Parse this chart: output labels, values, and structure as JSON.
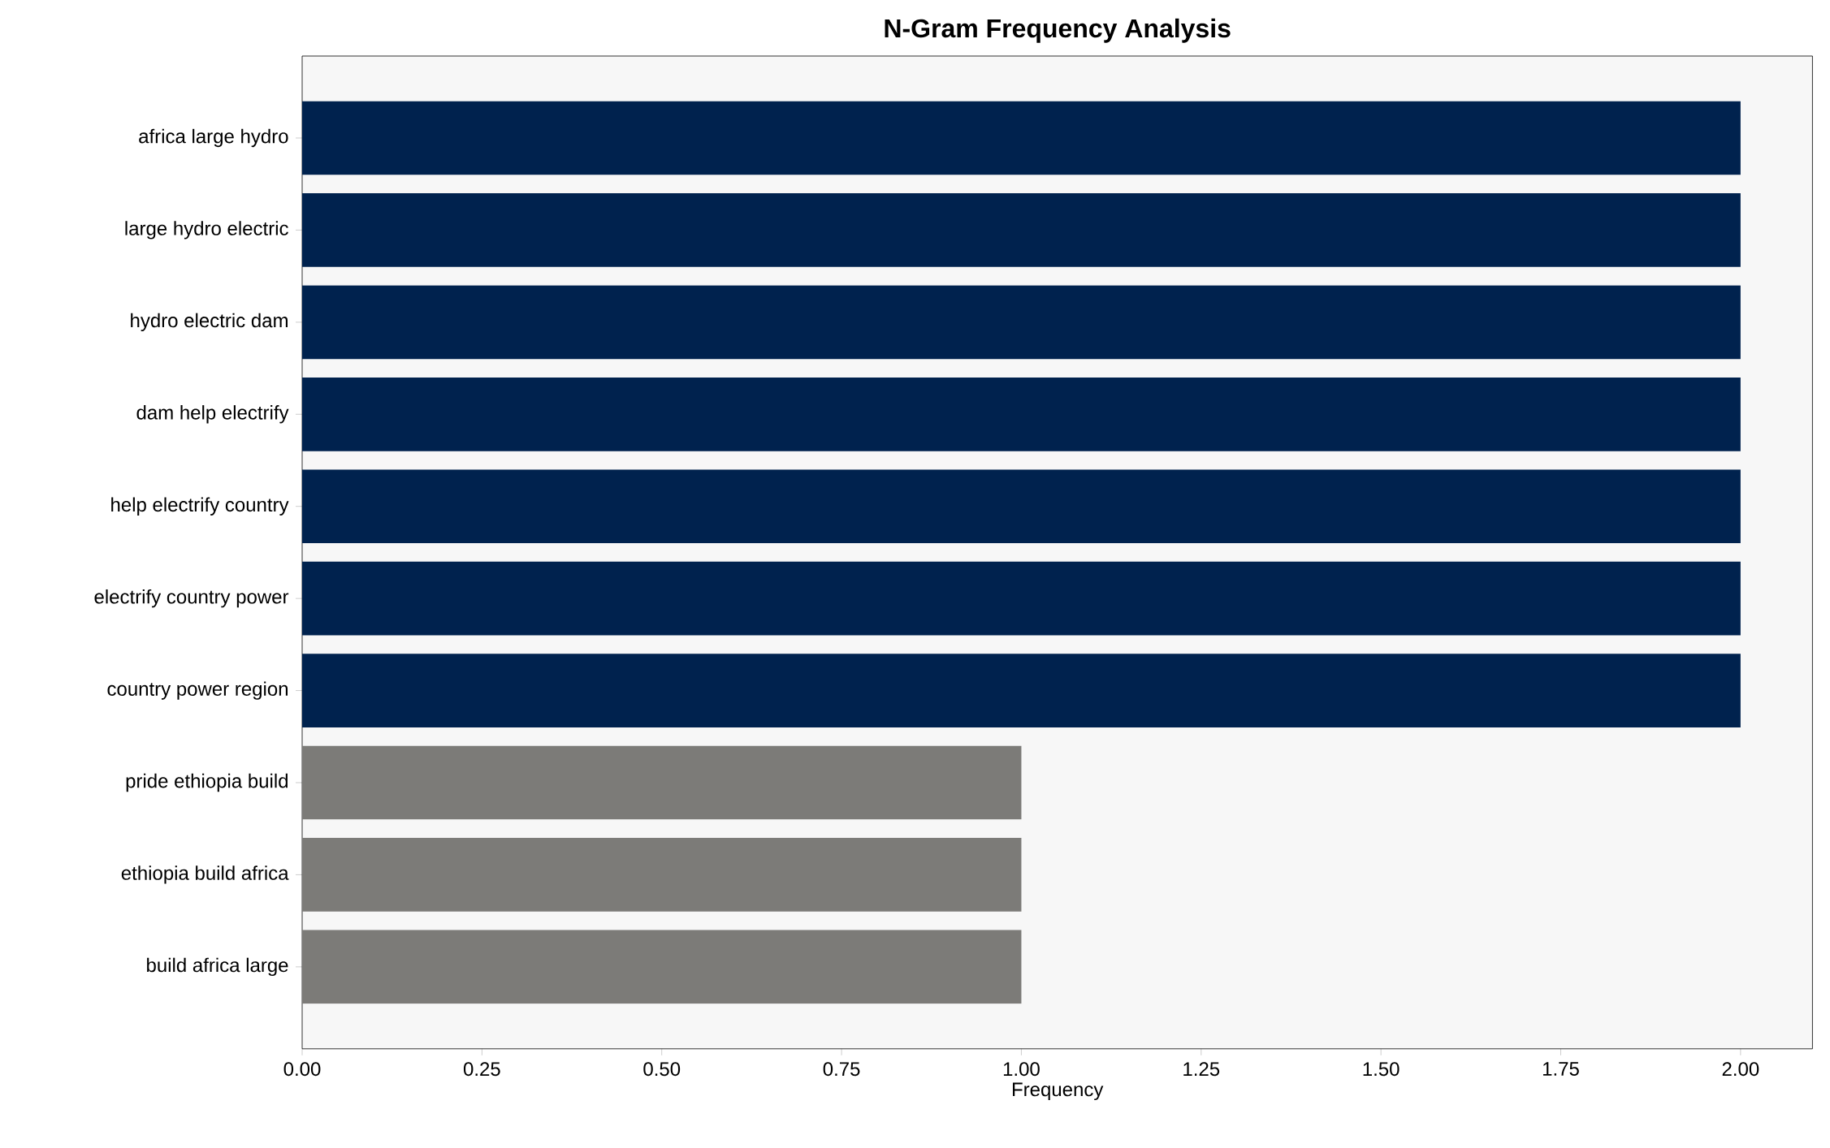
{
  "chart_data": {
    "type": "bar",
    "orientation": "horizontal",
    "title": "N-Gram Frequency Analysis",
    "xlabel": "Frequency",
    "categories": [
      "africa large hydro",
      "large hydro electric",
      "hydro electric dam",
      "dam help electrify",
      "help electrify country",
      "electrify country power",
      "country power region",
      "pride ethiopia build",
      "ethiopia build africa",
      "build africa large"
    ],
    "values": [
      2,
      2,
      2,
      2,
      2,
      2,
      2,
      1,
      1,
      1
    ],
    "colors": [
      "#00224e",
      "#00224e",
      "#00224e",
      "#00224e",
      "#00224e",
      "#00224e",
      "#00224e",
      "#7c7b78",
      "#7c7b78",
      "#7c7b78"
    ],
    "xlim": [
      0,
      2.1
    ],
    "xticks": [
      {
        "value": 0,
        "label": "0.00"
      },
      {
        "value": 0.25,
        "label": "0.25"
      },
      {
        "value": 0.5,
        "label": "0.50"
      },
      {
        "value": 0.75,
        "label": "0.75"
      },
      {
        "value": 1,
        "label": "1.00"
      },
      {
        "value": 1.25,
        "label": "1.25"
      },
      {
        "value": 1.5,
        "label": "1.50"
      },
      {
        "value": 1.75,
        "label": "1.75"
      },
      {
        "value": 2,
        "label": "2.00"
      }
    ],
    "grid": false
  }
}
